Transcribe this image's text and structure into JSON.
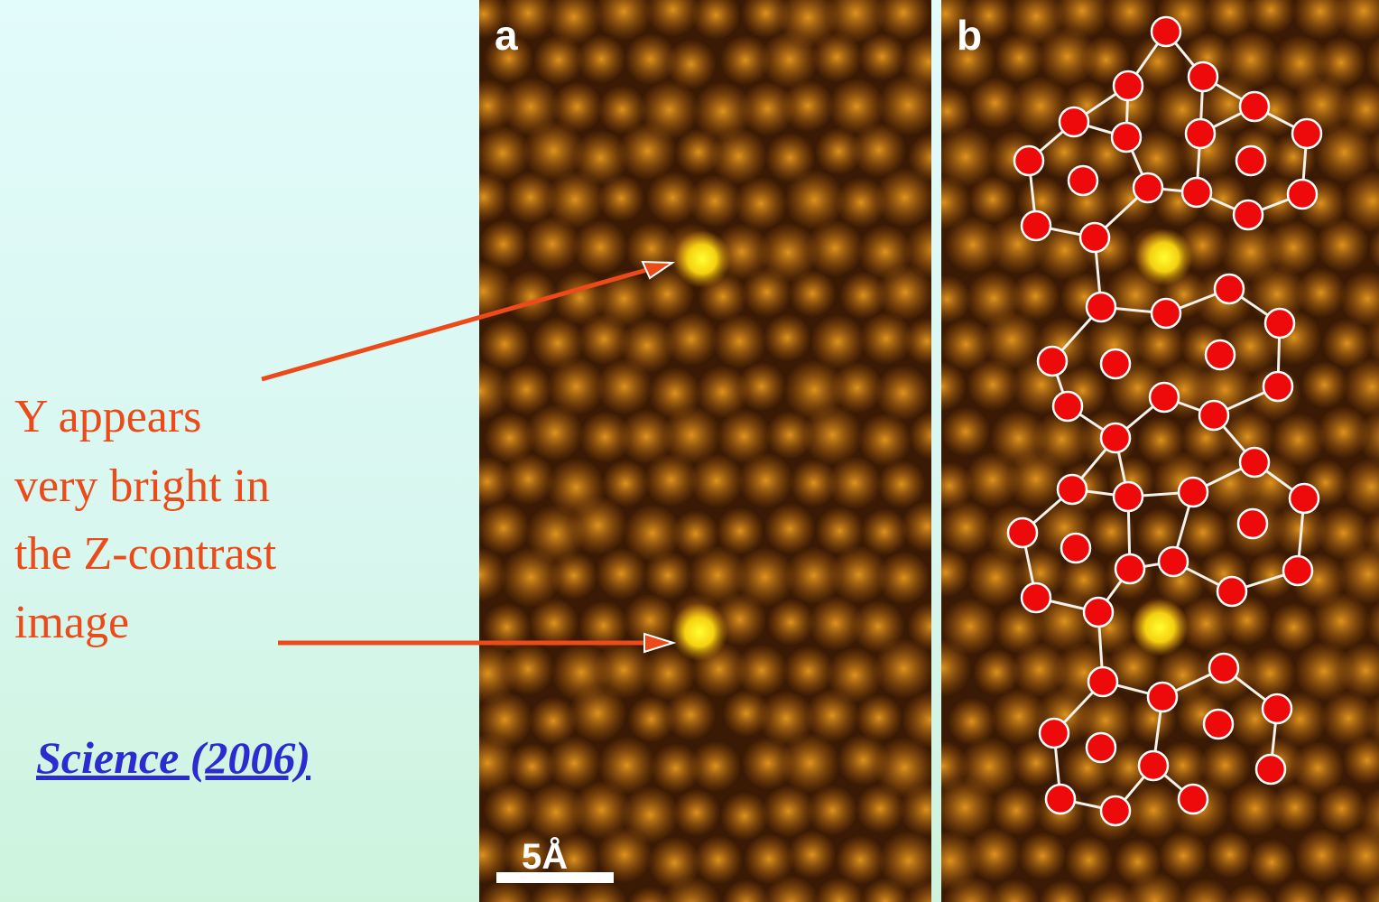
{
  "caption": {
    "lines": [
      "Y appears",
      "very bright in",
      "the Z-contrast",
      "image"
    ]
  },
  "citation": "Science (2006)",
  "panels": {
    "a": {
      "label": "a",
      "scale_bar": "5Å"
    },
    "b": {
      "label": "b"
    }
  }
}
